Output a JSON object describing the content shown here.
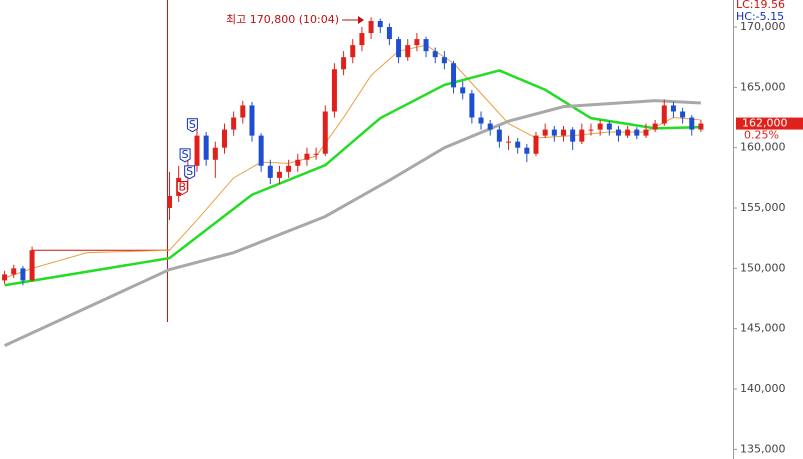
{
  "chart_data": {
    "type": "candlestick",
    "indicators": [
      {
        "text": "LC:19.56",
        "color": "#d01010"
      },
      {
        "text": "HC:-5.15",
        "color": "#1030c0"
      }
    ],
    "annotation": "최고 170,800 (10:04)",
    "last_price": "162,000",
    "change": "0.25%",
    "xlim": [
      -0.5,
      79.5
    ],
    "ylim": [
      134200,
      172240
    ],
    "yticks": [
      {
        "value": 135000,
        "label": "135,000"
      },
      {
        "value": 140000,
        "label": "140,000"
      },
      {
        "value": 145000,
        "label": "145,000"
      },
      {
        "value": 150000,
        "label": "150,000"
      },
      {
        "value": 155000,
        "label": "155,000"
      },
      {
        "value": 160000,
        "label": "160,000"
      },
      {
        "value": 165000,
        "label": "165,000"
      },
      {
        "value": 170000,
        "label": "170,000"
      }
    ],
    "up_color": "#e0201b",
    "down_color": "#1f4fd0",
    "reference_line": 151500,
    "reference_color": "#d01010",
    "candles": {
      "x": [
        0,
        1,
        2,
        3,
        18,
        19,
        20,
        21,
        22,
        23,
        24,
        25,
        26,
        27,
        28,
        29,
        30,
        31,
        32,
        33,
        34,
        35,
        36,
        37,
        38,
        39,
        40,
        41,
        42,
        43,
        44,
        45,
        46,
        47,
        48,
        49,
        50,
        51,
        52,
        53,
        54,
        55,
        56,
        57,
        58,
        59,
        60,
        61,
        62,
        63,
        64,
        65,
        66,
        67,
        68,
        69,
        70,
        71,
        72,
        73,
        74,
        75,
        76
      ],
      "open": [
        149000,
        149500,
        150000,
        149000,
        155000,
        156000,
        157500,
        158500,
        161000,
        159000,
        160000,
        161500,
        162500,
        163500,
        161000,
        158500,
        157500,
        158000,
        158500,
        159000,
        159500,
        159500,
        163000,
        166500,
        167500,
        168500,
        169500,
        170500,
        170000,
        169000,
        167500,
        168500,
        169000,
        168000,
        167500,
        167000,
        165000,
        164500,
        162500,
        162000,
        161500,
        160500,
        160500,
        160000,
        159500,
        161000,
        161500,
        161000,
        161500,
        160500,
        161500,
        161500,
        162000,
        161500,
        161000,
        161500,
        161000,
        161500,
        162000,
        163500,
        163000,
        162500,
        161500
      ],
      "high": [
        149800,
        150300,
        150200,
        151800,
        158000,
        158500,
        159000,
        161500,
        161300,
        160500,
        162000,
        163000,
        163900,
        163800,
        161200,
        159000,
        158500,
        159000,
        159500,
        160000,
        160000,
        163500,
        167000,
        168000,
        169000,
        170000,
        170800,
        170700,
        170300,
        169200,
        169000,
        169500,
        169200,
        168300,
        168000,
        167200,
        165500,
        164800,
        163000,
        162300,
        161800,
        161000,
        160800,
        160300,
        161300,
        162000,
        161800,
        161800,
        161700,
        162000,
        162000,
        162300,
        162200,
        161800,
        161800,
        161700,
        162000,
        162300,
        164000,
        163800,
        163300,
        162700,
        162300
      ],
      "low": [
        148700,
        149200,
        148600,
        148900,
        154000,
        155500,
        156500,
        158000,
        158500,
        157500,
        159500,
        161000,
        162000,
        160500,
        158000,
        157000,
        157000,
        157500,
        158000,
        158500,
        159000,
        159300,
        162500,
        166000,
        167000,
        168000,
        169000,
        169500,
        168500,
        167000,
        167200,
        168000,
        167500,
        167000,
        166500,
        164500,
        164000,
        162000,
        161500,
        161000,
        160000,
        159800,
        159500,
        158800,
        159300,
        160800,
        160500,
        160500,
        159800,
        160300,
        161000,
        161000,
        161000,
        160500,
        160800,
        160700,
        160800,
        161300,
        161800,
        162500,
        162000,
        161000,
        161300
      ],
      "close": [
        149500,
        150000,
        149000,
        151500,
        156000,
        157500,
        158500,
        161000,
        159000,
        160000,
        161500,
        162500,
        163500,
        161000,
        158500,
        157500,
        158000,
        158500,
        159000,
        159500,
        159500,
        163000,
        166500,
        167500,
        168500,
        169500,
        170500,
        170000,
        169000,
        167500,
        168500,
        169000,
        168000,
        167500,
        167000,
        165000,
        164500,
        162500,
        162000,
        161500,
        160500,
        160500,
        160000,
        159500,
        161000,
        161500,
        161000,
        161500,
        160500,
        161500,
        161500,
        162000,
        161500,
        161000,
        161500,
        161000,
        161500,
        162000,
        163500,
        163000,
        162500,
        161500,
        162000
      ]
    },
    "series": [
      {
        "color": "#e8a040",
        "width": 1,
        "x": [
          0,
          3,
          9,
          18,
          21,
          25,
          28,
          31,
          34,
          37,
          40,
          43,
          46,
          49,
          52,
          55,
          58,
          62,
          66,
          70,
          73,
          76
        ],
        "values": [
          149200,
          150000,
          151300,
          151500,
          154000,
          157500,
          158800,
          158700,
          159300,
          162500,
          166000,
          168000,
          168500,
          167000,
          164500,
          162000,
          160800,
          161000,
          161300,
          161300,
          162500,
          162300
        ]
      },
      {
        "color": "#22dd22",
        "width": 2.5,
        "x": [
          0,
          18,
          27,
          35,
          41,
          48,
          54,
          59,
          64,
          71,
          76
        ],
        "values": [
          148600,
          150850,
          156100,
          158550,
          162450,
          165200,
          166400,
          164800,
          162450,
          161600,
          161700
        ]
      },
      {
        "color": "#a8a8a8",
        "width": 3,
        "x": [
          0,
          18,
          25,
          35,
          42,
          48,
          55,
          61,
          71,
          76
        ],
        "values": [
          143600,
          149900,
          151300,
          154300,
          157300,
          160000,
          162200,
          163400,
          163900,
          163700
        ]
      }
    ],
    "signals": [
      {
        "label": "B",
        "x": 19.4,
        "y": 156700,
        "color": "#d01010"
      },
      {
        "label": "S",
        "x": 20.5,
        "y": 161900,
        "color": "#1030c0"
      },
      {
        "label": "S",
        "x": 19.7,
        "y": 159400,
        "color": "#1030c0"
      },
      {
        "label": "S",
        "x": 20.2,
        "y": 158000,
        "color": "#1030c0"
      }
    ]
  }
}
